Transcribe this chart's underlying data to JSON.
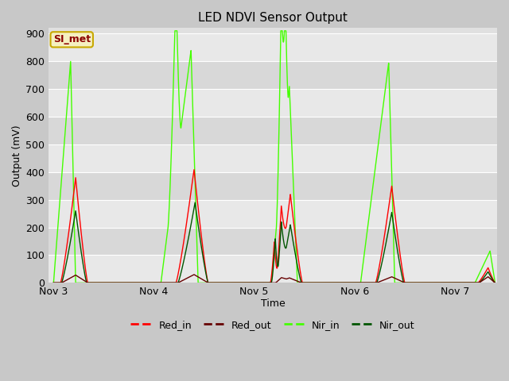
{
  "title": "LED NDVI Sensor Output",
  "xlabel": "Time",
  "ylabel": "Output (mV)",
  "ylim": [
    0,
    920
  ],
  "yticks": [
    0,
    100,
    200,
    300,
    400,
    500,
    600,
    700,
    800,
    900
  ],
  "fig_bg_color": "#c8c8c8",
  "plot_bg_color": "#e0e0e0",
  "grid_color": "#f0f0f0",
  "annotation_text": "SI_met",
  "annotation_bg": "#f5f0c0",
  "annotation_border": "#c8a800",
  "annotation_text_color": "#8b0000",
  "red_in_color": "#ff0000",
  "red_out_color": "#660000",
  "nir_in_color": "#44ff00",
  "nir_out_color": "#005500",
  "xtick_labels": [
    "Nov 3",
    "Nov 4",
    "Nov 5",
    "Nov 6",
    "Nov 7"
  ],
  "xtick_positions": [
    0.0,
    1.0,
    2.0,
    3.0,
    4.0
  ],
  "figsize": [
    6.4,
    4.8
  ],
  "dpi": 100
}
